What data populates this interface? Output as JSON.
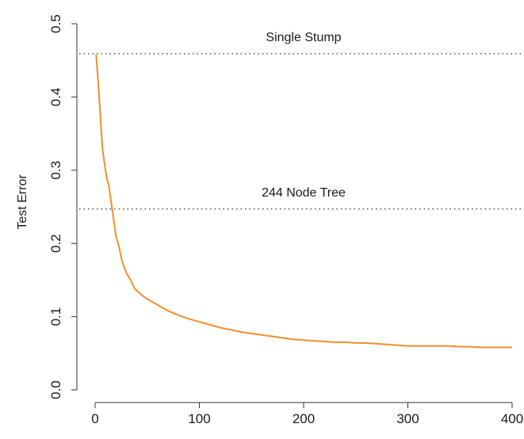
{
  "chart_data": {
    "type": "line",
    "title": "",
    "xlabel": "",
    "ylabel": "Test Error",
    "xlim": [
      0,
      400
    ],
    "ylim": [
      0,
      0.5
    ],
    "x_ticks": [
      0,
      100,
      200,
      300,
      400
    ],
    "y_ticks": [
      0.0,
      0.1,
      0.2,
      0.3,
      0.4,
      0.5
    ],
    "x_tick_labels": [
      "0",
      "100",
      "200",
      "300",
      "400"
    ],
    "y_tick_labels": [
      "0.0",
      "0.1",
      "0.2",
      "0.3",
      "0.4",
      "0.5"
    ],
    "grid": false,
    "series": [
      {
        "color": "#f28e2b",
        "x": [
          1,
          3,
          5,
          7,
          9,
          11,
          13,
          15,
          17,
          20,
          23,
          26,
          30,
          34,
          38,
          42,
          46,
          50,
          55,
          60,
          65,
          70,
          80,
          90,
          100,
          110,
          120,
          130,
          140,
          150,
          160,
          170,
          180,
          190,
          200,
          210,
          220,
          230,
          240,
          250,
          260,
          270,
          280,
          290,
          300,
          310,
          320,
          330,
          340,
          350,
          360,
          370,
          380,
          390,
          400
        ],
        "y": [
          0.458,
          0.42,
          0.375,
          0.33,
          0.31,
          0.29,
          0.28,
          0.26,
          0.24,
          0.21,
          0.195,
          0.175,
          0.16,
          0.15,
          0.138,
          0.133,
          0.128,
          0.124,
          0.12,
          0.116,
          0.112,
          0.108,
          0.102,
          0.097,
          0.093,
          0.089,
          0.085,
          0.082,
          0.079,
          0.077,
          0.075,
          0.073,
          0.071,
          0.069,
          0.068,
          0.067,
          0.066,
          0.065,
          0.065,
          0.064,
          0.064,
          0.063,
          0.062,
          0.061,
          0.06,
          0.06,
          0.06,
          0.06,
          0.06,
          0.059,
          0.059,
          0.058,
          0.058,
          0.058,
          0.058
        ]
      }
    ],
    "reference_lines": [
      {
        "y": 0.459,
        "label": "Single Stump",
        "style": "dotted"
      },
      {
        "y": 0.247,
        "label": "244 Node Tree",
        "style": "dotted"
      }
    ]
  }
}
